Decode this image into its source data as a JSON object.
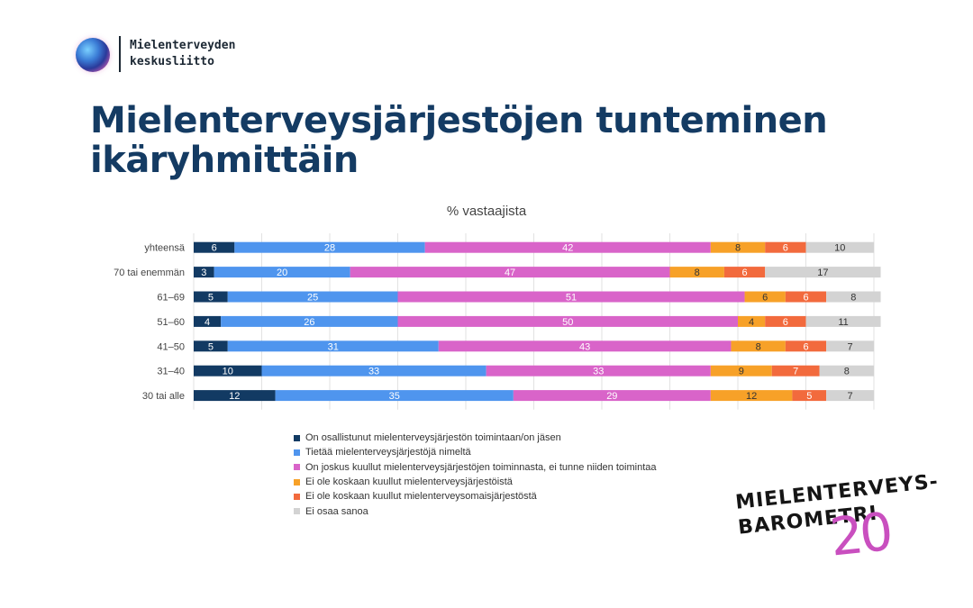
{
  "logo": {
    "line1": "Mielenterveyden",
    "line2": "keskusliitto"
  },
  "title": "Mielenterveysjärjestöjen tunteminen ikäryhmittäin",
  "brand": {
    "line1": "MIELENTERVEYS-",
    "line2": "BAROMETRI",
    "number": "20"
  },
  "chart_data": {
    "type": "bar",
    "orientation": "horizontal",
    "stacked": true,
    "subtitle": "% vastaajista",
    "categories": [
      "yhteensä",
      "70 tai enemmän",
      "61–69",
      "51–60",
      "41–50",
      "31–40",
      "30 tai alle"
    ],
    "series": [
      {
        "name": "On osallistunut mielenterveysjärjestön toimintaan/on jäsen",
        "color": "#123a63",
        "label_color": "#ffffff",
        "values": [
          6,
          3,
          5,
          4,
          5,
          10,
          12
        ]
      },
      {
        "name": "Tietää mielenterveysjärjestöjä nimeltä",
        "color": "#4f95ee",
        "label_color": "#ffffff",
        "values": [
          28,
          20,
          25,
          26,
          31,
          33,
          35
        ]
      },
      {
        "name": "On joskus kuullut mielenterveysjärjestöjen toiminnasta, ei tunne niiden toimintaa",
        "color": "#d964c9",
        "label_color": "#ffffff",
        "values": [
          42,
          47,
          51,
          50,
          43,
          33,
          29
        ]
      },
      {
        "name": "Ei ole koskaan kuullut mielenterveysjärjestöistä",
        "color": "#f7a128",
        "label_color": "#333333",
        "values": [
          8,
          8,
          6,
          4,
          8,
          9,
          12
        ]
      },
      {
        "name": "Ei ole koskaan kuullut mielenterveysomaisjärjestöstä",
        "color": "#f26a3d",
        "label_color": "#ffffff",
        "values": [
          6,
          6,
          6,
          6,
          6,
          7,
          5
        ]
      },
      {
        "name": "Ei osaa sanoa",
        "color": "#d3d3d3",
        "label_color": "#333333",
        "values": [
          10,
          17,
          8,
          11,
          7,
          8,
          7
        ]
      }
    ],
    "xlim": [
      0,
      100
    ],
    "grid": true,
    "legend_position": "bottom"
  }
}
